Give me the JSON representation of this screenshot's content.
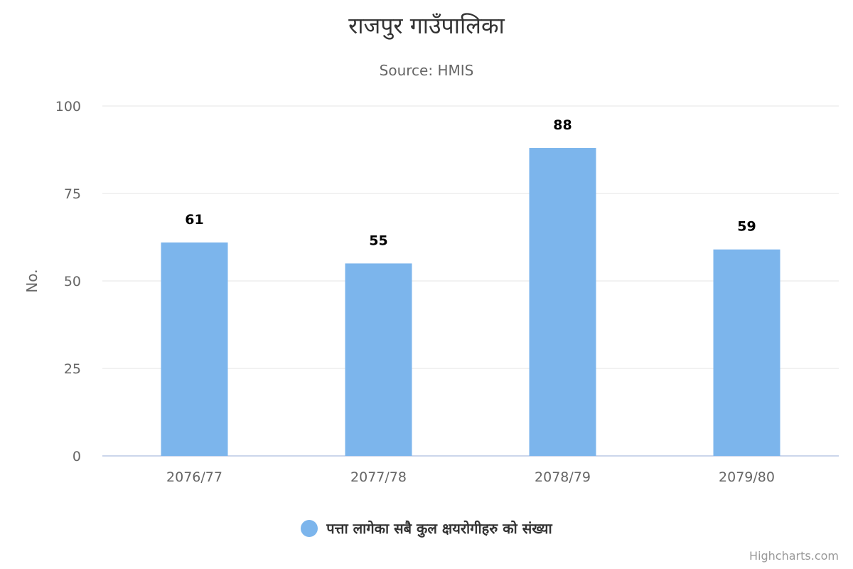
{
  "chart_data": {
    "type": "bar",
    "title": "राजपुर गाउँपालिका",
    "subtitle": "Source: HMIS",
    "ylabel": "No.",
    "xlabel": "",
    "categories": [
      "2076/77",
      "2077/78",
      "2078/79",
      "2079/80"
    ],
    "series": [
      {
        "name": "पत्ता लागेका सबै कुल क्षयरोगीहरु को संख्या",
        "values": [
          61,
          55,
          88,
          59
        ],
        "color": "#7cb5ec"
      }
    ],
    "ylim": [
      0,
      100
    ],
    "yticks": [
      0,
      25,
      50,
      75,
      100
    ],
    "grid": true,
    "data_labels": true,
    "legend_position": "bottom-center"
  },
  "credits": "Highcharts.com",
  "colors": {
    "bar": "#7cb5ec",
    "grid": "#e6e6e6",
    "axis_line": "#ccd6eb",
    "text_dark": "#333333",
    "text_muted": "#666666"
  }
}
